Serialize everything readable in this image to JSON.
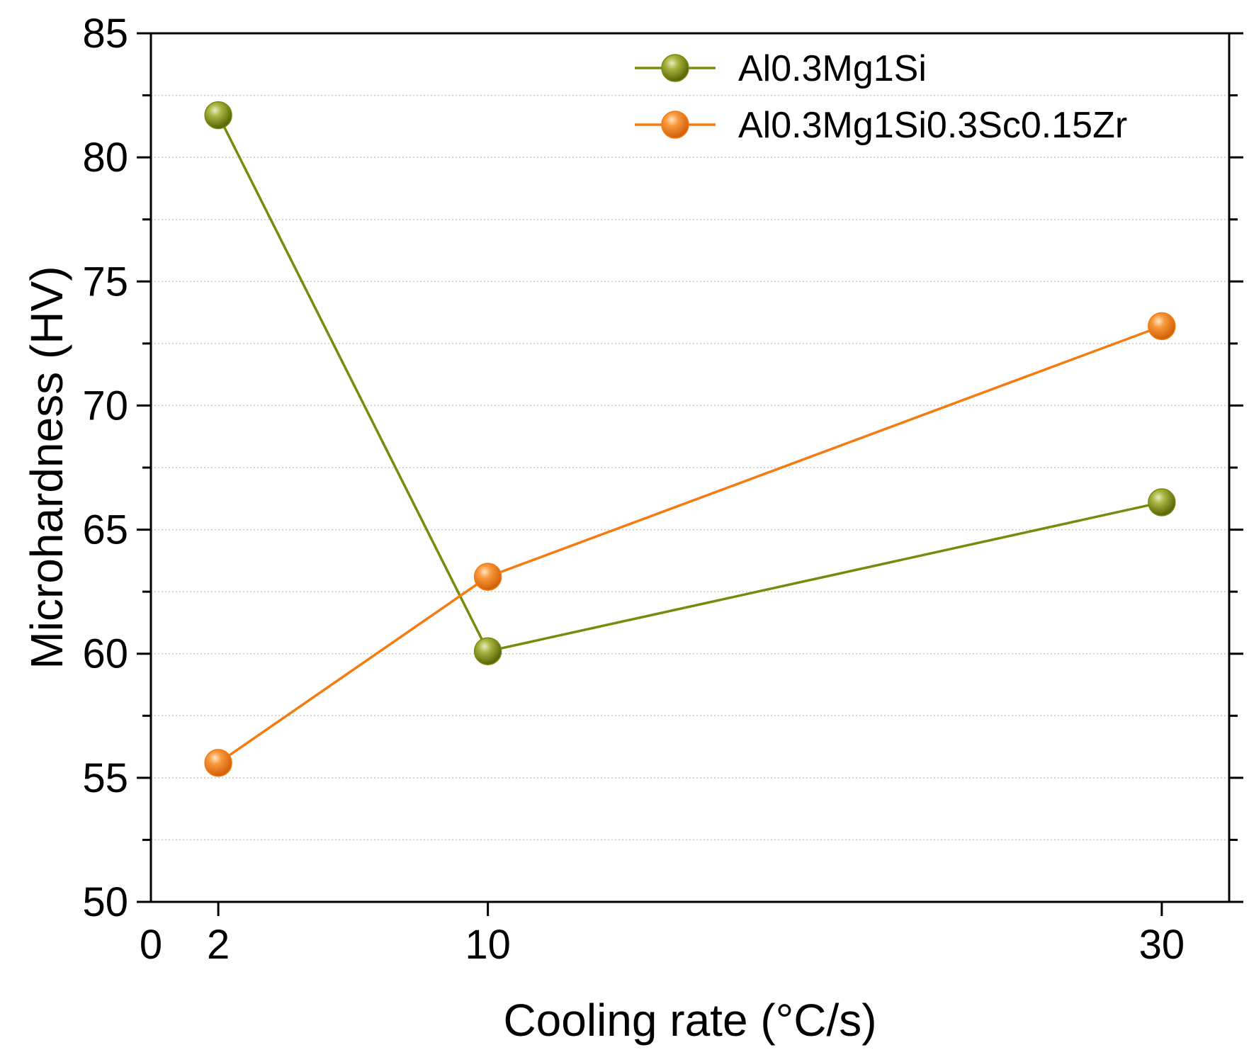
{
  "chart_data": {
    "type": "line",
    "xlabel": "Cooling rate (°C/s)",
    "ylabel": "Microhardness (HV)",
    "xlim": [
      0,
      32
    ],
    "ylim": [
      50,
      85
    ],
    "x_ticks": [
      0,
      2,
      10,
      30
    ],
    "y_ticks": [
      50,
      55,
      60,
      65,
      70,
      75,
      80,
      85
    ],
    "y_minor_step": 2.5,
    "grid": "horizontal dotted",
    "legend_position": "top-right",
    "series": [
      {
        "name": "Al0.3Mg1Si",
        "color": "#7a8a0e",
        "marker_light": "#b8c25a",
        "x": [
          2,
          10,
          30
        ],
        "values": [
          81.7,
          60.1,
          66.1
        ]
      },
      {
        "name": "Al0.3Mg1Si0.3Sc0.15Zr",
        "color": "#f47c0f",
        "marker_light": "#fcc487",
        "x": [
          2,
          10,
          30
        ],
        "values": [
          55.6,
          63.1,
          73.2
        ]
      }
    ]
  }
}
